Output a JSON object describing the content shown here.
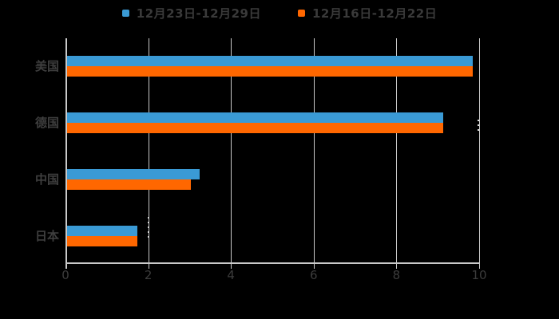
{
  "chart_data": {
    "type": "bar",
    "orientation": "horizontal",
    "title": "",
    "categories": [
      "美国",
      "德国",
      "中国",
      "日本"
    ],
    "series": [
      {
        "name": "12月23日-12月29日",
        "color": "#3a9ad5",
        "values": [
          9.8,
          9.1,
          3.2,
          1.7
        ]
      },
      {
        "name": "12月16日-12月22日",
        "color": "#ff6700",
        "values": [
          9.8,
          9.1,
          3.0,
          1.7
        ]
      }
    ],
    "xlabel": "",
    "ylabel": "",
    "xlim": [
      0,
      10
    ],
    "xticks": [
      0,
      2,
      4,
      6,
      8,
      10
    ],
    "grid": true,
    "legend_position": "top-center",
    "colors": {
      "background": "#000000",
      "axis": "#c9c9c9",
      "text": "#3c3c3c"
    }
  }
}
